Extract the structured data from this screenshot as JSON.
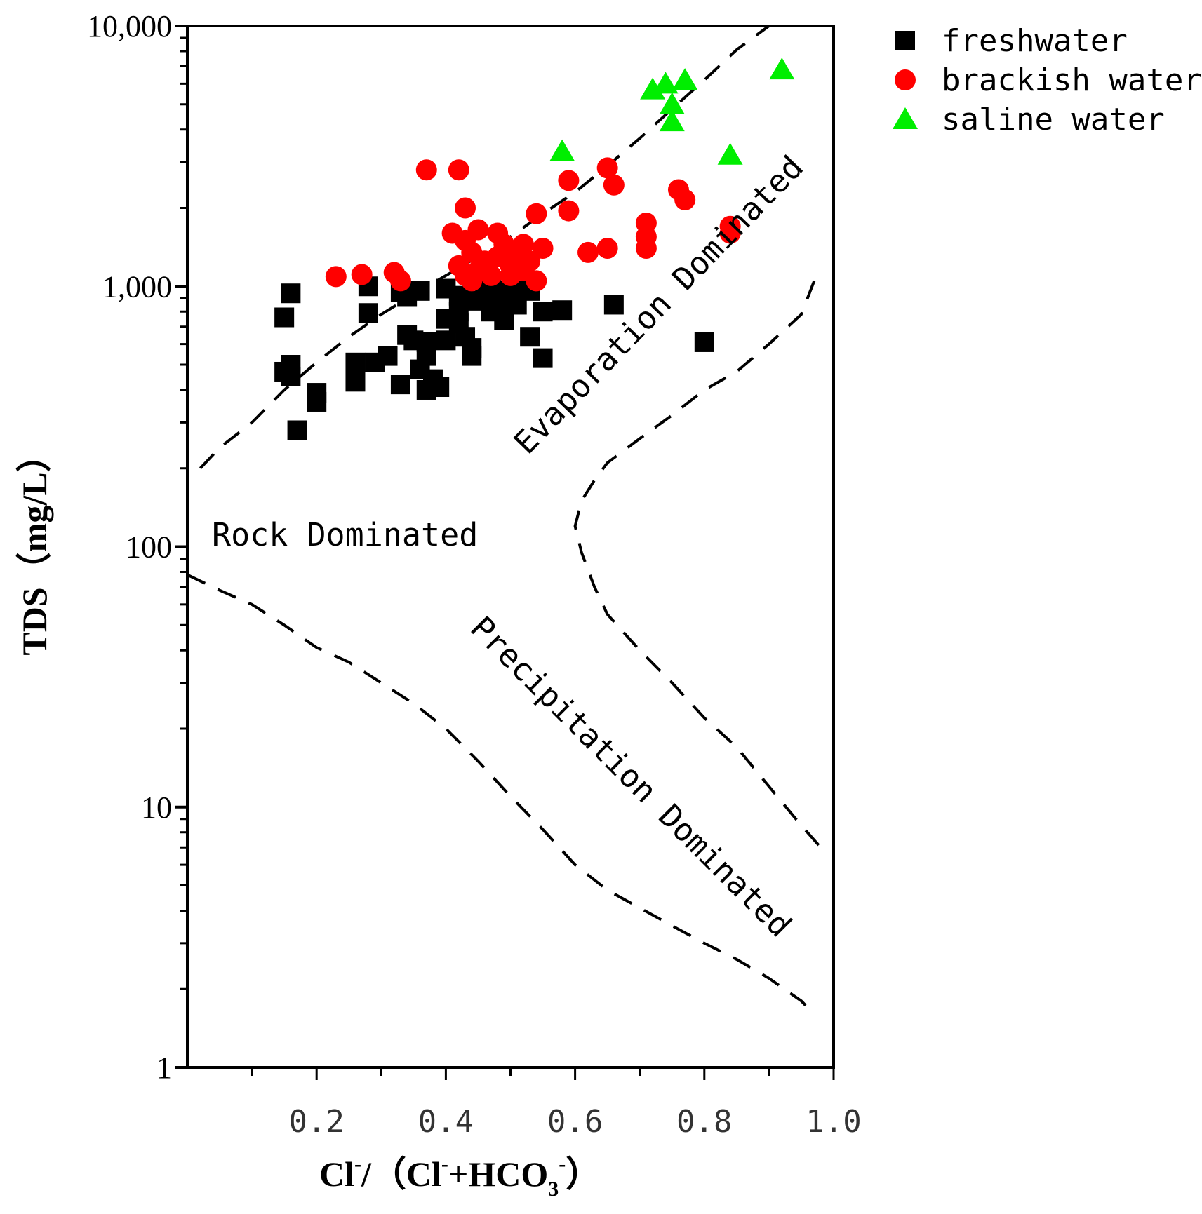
{
  "chart_data": {
    "type": "scatter",
    "title": "",
    "xlabel": {
      "a": "Cl",
      "b": "/（",
      "c": "Cl",
      "d": "+HCO",
      "e": "）",
      "sup1": "-",
      "sup2": "-",
      "sup3": "-",
      "sub": "3"
    },
    "ylabel": "TDS（mg/L）",
    "xlim": [
      0,
      1.0
    ],
    "ylim": [
      1,
      10000
    ],
    "yscale": "log",
    "x_ticks": [
      0.2,
      0.4,
      0.6,
      0.8,
      1.0
    ],
    "x_tick_labels": [
      "0.2",
      "0.4",
      "0.6",
      "0.8",
      "1.0"
    ],
    "y_ticks": [
      1,
      10,
      100,
      1000,
      10000
    ],
    "y_tick_labels": [
      "1",
      "10",
      "100",
      "1,000",
      "10,000"
    ],
    "region_labels": {
      "rock": "Rock Dominated",
      "evaporation": "Evaporation Dominated",
      "precipitation": "Precipitation Dominated"
    },
    "boundaries": {
      "upper": [
        [
          0.02,
          200
        ],
        [
          0.05,
          240
        ],
        [
          0.1,
          300
        ],
        [
          0.15,
          400
        ],
        [
          0.2,
          510
        ],
        [
          0.25,
          640
        ],
        [
          0.3,
          780
        ],
        [
          0.35,
          930
        ],
        [
          0.4,
          1100
        ],
        [
          0.45,
          1300
        ],
        [
          0.5,
          1550
        ],
        [
          0.55,
          1900
        ],
        [
          0.6,
          2300
        ],
        [
          0.65,
          2900
        ],
        [
          0.7,
          3700
        ],
        [
          0.75,
          4800
        ],
        [
          0.8,
          6200
        ],
        [
          0.85,
          8100
        ],
        [
          0.9,
          10000
        ]
      ],
      "middle": [
        [
          0.97,
          1050
        ],
        [
          0.95,
          780
        ],
        [
          0.9,
          600
        ],
        [
          0.85,
          470
        ],
        [
          0.8,
          400
        ],
        [
          0.75,
          320
        ],
        [
          0.7,
          260
        ],
        [
          0.65,
          210
        ],
        [
          0.63,
          180
        ],
        [
          0.61,
          150
        ],
        [
          0.6,
          120
        ],
        [
          0.61,
          95
        ],
        [
          0.63,
          70
        ],
        [
          0.65,
          55
        ],
        [
          0.7,
          40
        ],
        [
          0.75,
          30
        ],
        [
          0.8,
          22
        ],
        [
          0.85,
          17
        ],
        [
          0.9,
          12
        ],
        [
          0.95,
          8.5
        ],
        [
          0.98,
          7
        ]
      ],
      "lower": [
        [
          0.0,
          78
        ],
        [
          0.05,
          68
        ],
        [
          0.1,
          60
        ],
        [
          0.15,
          50
        ],
        [
          0.2,
          41
        ],
        [
          0.25,
          36
        ],
        [
          0.3,
          30
        ],
        [
          0.35,
          25
        ],
        [
          0.4,
          20
        ],
        [
          0.45,
          15
        ],
        [
          0.5,
          11
        ],
        [
          0.55,
          8.2
        ],
        [
          0.6,
          6.0
        ],
        [
          0.65,
          4.8
        ],
        [
          0.7,
          4.1
        ],
        [
          0.75,
          3.5
        ],
        [
          0.8,
          3.0
        ],
        [
          0.85,
          2.6
        ],
        [
          0.9,
          2.2
        ],
        [
          0.95,
          1.8
        ],
        [
          0.97,
          1.6
        ]
      ]
    },
    "series": [
      {
        "name": "freshwater",
        "marker": "square",
        "color": "#000000",
        "points": [
          [
            0.16,
            940
          ],
          [
            0.15,
            760
          ],
          [
            0.15,
            470
          ],
          [
            0.16,
            500
          ],
          [
            0.16,
            450
          ],
          [
            0.17,
            280
          ],
          [
            0.2,
            360
          ],
          [
            0.2,
            390
          ],
          [
            0.26,
            510
          ],
          [
            0.26,
            430
          ],
          [
            0.28,
            1000
          ],
          [
            0.28,
            790
          ],
          [
            0.29,
            510
          ],
          [
            0.31,
            540
          ],
          [
            0.33,
            950
          ],
          [
            0.34,
            910
          ],
          [
            0.34,
            650
          ],
          [
            0.33,
            420
          ],
          [
            0.35,
            620
          ],
          [
            0.36,
            960
          ],
          [
            0.37,
            610
          ],
          [
            0.37,
            540
          ],
          [
            0.36,
            480
          ],
          [
            0.37,
            400
          ],
          [
            0.38,
            440
          ],
          [
            0.39,
            410
          ],
          [
            0.4,
            980
          ],
          [
            0.4,
            750
          ],
          [
            0.4,
            620
          ],
          [
            0.42,
            920
          ],
          [
            0.42,
            800
          ],
          [
            0.42,
            720
          ],
          [
            0.43,
            640
          ],
          [
            0.44,
            580
          ],
          [
            0.44,
            540
          ],
          [
            0.45,
            880
          ],
          [
            0.46,
            930
          ],
          [
            0.47,
            980
          ],
          [
            0.47,
            800
          ],
          [
            0.48,
            870
          ],
          [
            0.49,
            740
          ],
          [
            0.5,
            910
          ],
          [
            0.5,
            960
          ],
          [
            0.51,
            850
          ],
          [
            0.53,
            960
          ],
          [
            0.53,
            640
          ],
          [
            0.55,
            530
          ],
          [
            0.55,
            800
          ],
          [
            0.58,
            810
          ],
          [
            0.66,
            850
          ],
          [
            0.8,
            610
          ]
        ]
      },
      {
        "name": "brackish water",
        "marker": "circle",
        "color": "#ff0000",
        "points": [
          [
            0.23,
            1090
          ],
          [
            0.27,
            1110
          ],
          [
            0.32,
            1130
          ],
          [
            0.33,
            1050
          ],
          [
            0.37,
            2800
          ],
          [
            0.42,
            2800
          ],
          [
            0.43,
            2000
          ],
          [
            0.41,
            1600
          ],
          [
            0.43,
            1500
          ],
          [
            0.45,
            1650
          ],
          [
            0.44,
            1350
          ],
          [
            0.42,
            1200
          ],
          [
            0.43,
            1100
          ],
          [
            0.44,
            1050
          ],
          [
            0.45,
            1150
          ],
          [
            0.46,
            1250
          ],
          [
            0.47,
            1100
          ],
          [
            0.48,
            1300
          ],
          [
            0.48,
            1600
          ],
          [
            0.49,
            1450
          ],
          [
            0.5,
            1200
          ],
          [
            0.5,
            1100
          ],
          [
            0.51,
            1350
          ],
          [
            0.52,
            1450
          ],
          [
            0.52,
            1150
          ],
          [
            0.53,
            1250
          ],
          [
            0.54,
            1050
          ],
          [
            0.54,
            1900
          ],
          [
            0.55,
            1400
          ],
          [
            0.59,
            2550
          ],
          [
            0.59,
            1950
          ],
          [
            0.62,
            1350
          ],
          [
            0.65,
            1400
          ],
          [
            0.65,
            2850
          ],
          [
            0.66,
            2450
          ],
          [
            0.71,
            1400
          ],
          [
            0.71,
            1550
          ],
          [
            0.71,
            1750
          ],
          [
            0.76,
            2350
          ],
          [
            0.77,
            2150
          ],
          [
            0.84,
            1700
          ],
          [
            0.84,
            1600
          ]
        ]
      },
      {
        "name": "saline water",
        "marker": "triangle",
        "color": "#00ee00",
        "points": [
          [
            0.58,
            3300
          ],
          [
            0.72,
            5700
          ],
          [
            0.74,
            6000
          ],
          [
            0.75,
            5000
          ],
          [
            0.75,
            4300
          ],
          [
            0.77,
            6200
          ],
          [
            0.84,
            3200
          ],
          [
            0.92,
            6800
          ]
        ]
      }
    ]
  }
}
